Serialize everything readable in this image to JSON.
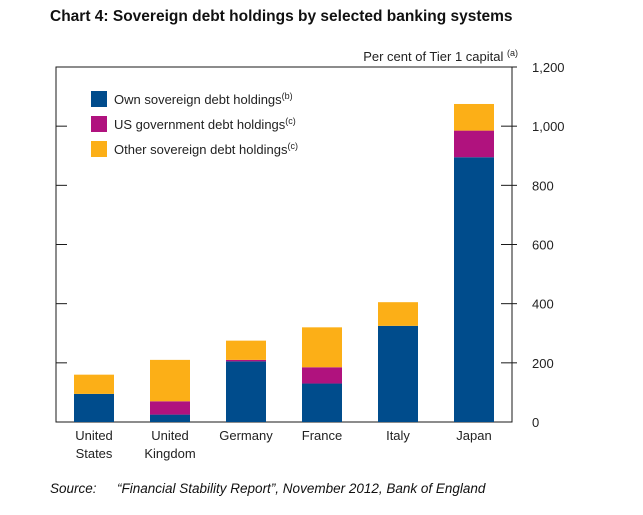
{
  "title": "Chart 4:  Sovereign debt holdings by selected banking systems",
  "source": {
    "label": "Source:",
    "text": "“Financial Stability Report”, November 2012, Bank of England"
  },
  "chart_data": {
    "type": "bar",
    "stacked": true,
    "categories": [
      [
        "United",
        "States"
      ],
      [
        "United",
        "Kingdom"
      ],
      [
        "Germany"
      ],
      [
        "France"
      ],
      [
        "Italy"
      ],
      [
        "Japan"
      ]
    ],
    "series": [
      {
        "name": "Own sovereign debt holdings",
        "note": "(b)",
        "color": "#004c8c",
        "values": [
          95,
          25,
          205,
          130,
          325,
          895
        ]
      },
      {
        "name": "US government debt holdings",
        "note": "(c)",
        "color": "#b0127e",
        "values": [
          0,
          45,
          5,
          55,
          0,
          90
        ]
      },
      {
        "name": "Other sovereign debt holdings",
        "note": "(c)",
        "color": "#fcaf17",
        "values": [
          65,
          140,
          65,
          135,
          80,
          90
        ]
      }
    ],
    "ylabel": "Per cent of Tier 1 capital",
    "ylabel_note": "(a)",
    "ylim": [
      0,
      1200
    ],
    "yticks": [
      0,
      200,
      400,
      600,
      800,
      1000,
      1200
    ],
    "ytick_labels": [
      "0",
      "200",
      "400",
      "600",
      "800",
      "1,000",
      "1,200"
    ],
    "grid": false,
    "y_axis_side": "right",
    "legend_position": "top-left"
  }
}
